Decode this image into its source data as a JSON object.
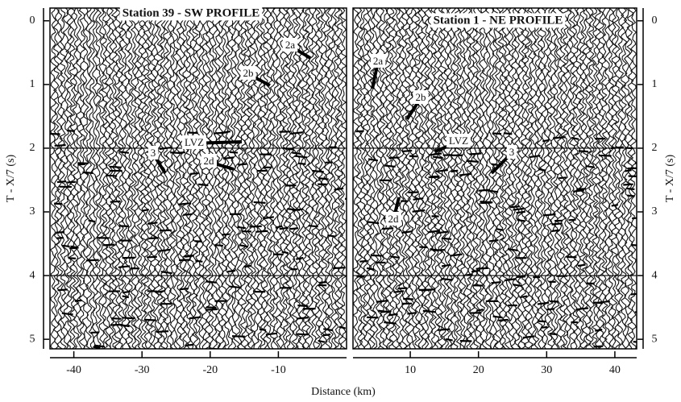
{
  "chart_data": [
    {
      "type": "seismic",
      "title": "Station 39 - SW  PROFILE",
      "xlim": [
        -43.5,
        0
      ],
      "xticks": [
        -40,
        -30,
        -20,
        -10
      ],
      "ylim": [
        -0.2,
        5.15
      ],
      "yticks": [
        0,
        1,
        2,
        3,
        4,
        5
      ],
      "y_label": "T - X/7  (s)",
      "hlines": [
        2,
        4
      ],
      "annotations": [
        "2a",
        "2b",
        "LVZ",
        "3",
        "2d"
      ]
    },
    {
      "type": "seismic",
      "title": "Station 1 - NE  PROFILE",
      "xlim": [
        1.6,
        43.2
      ],
      "xticks": [
        10,
        20,
        30,
        40
      ],
      "ylim": [
        -0.2,
        5.15
      ],
      "yticks": [
        0,
        1,
        2,
        3,
        4,
        5
      ],
      "y_label": "T - X/7  (s)",
      "hlines": [
        2,
        4
      ],
      "annotations": [
        "2a",
        "2b",
        "LVZ",
        "3",
        "2d"
      ]
    }
  ],
  "x_label": "Distance (km)"
}
